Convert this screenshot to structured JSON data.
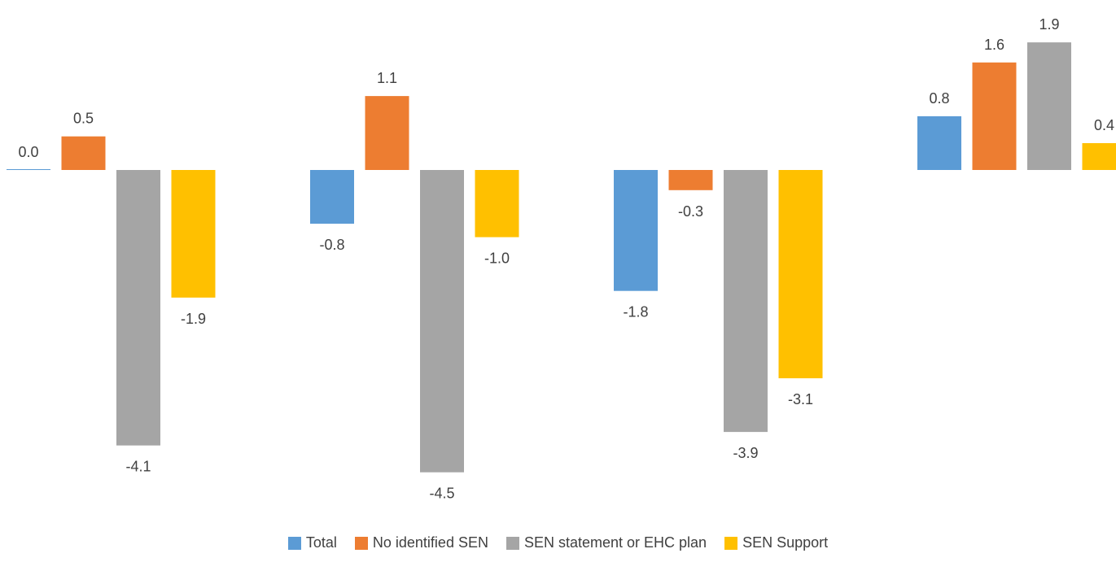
{
  "chart_data": {
    "type": "bar",
    "categories": [
      "",
      "",
      "",
      ""
    ],
    "series": [
      {
        "name": "Total",
        "color": "#5B9BD5",
        "values": [
          0.0,
          -0.8,
          -1.8,
          0.8
        ]
      },
      {
        "name": "No identified SEN",
        "color": "#ED7D31",
        "values": [
          0.5,
          1.1,
          -0.3,
          1.6
        ]
      },
      {
        "name": "SEN statement or EHC plan",
        "color": "#A5A5A5",
        "values": [
          -4.1,
          -4.5,
          -3.9,
          1.9
        ]
      },
      {
        "name": "SEN Support",
        "color": "#FFC000",
        "values": [
          -1.9,
          -1.0,
          -3.1,
          0.4
        ]
      }
    ],
    "data_labels": true,
    "value_format": "0.0",
    "ylim": [
      -4.5,
      1.9
    ],
    "grid": false,
    "legend_position": "bottom"
  }
}
